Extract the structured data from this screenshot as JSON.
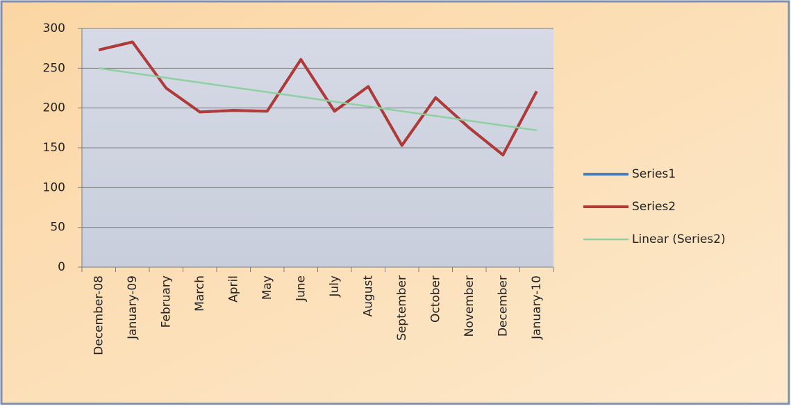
{
  "chart_data": {
    "type": "line",
    "categories": [
      "December-08",
      "January-09",
      "February",
      "March",
      "April",
      "May",
      "June",
      "July",
      "August",
      "September",
      "October",
      "November",
      "December",
      "January-10"
    ],
    "series": [
      {
        "name": "Series1",
        "color": "#4a7ebb",
        "values": [
          273,
          283,
          225,
          195,
          197,
          196,
          261,
          196,
          227,
          153,
          213,
          175,
          141,
          221
        ]
      },
      {
        "name": "Series2",
        "color": "#b23a36",
        "values": [
          273,
          283,
          225,
          195,
          197,
          196,
          261,
          196,
          227,
          153,
          213,
          175,
          141,
          221
        ]
      },
      {
        "name": "Linear (Series2)",
        "color": "#8fd0a0",
        "values": [
          250,
          244,
          238,
          232,
          226,
          220,
          214,
          208,
          202,
          196,
          190,
          184,
          178,
          172
        ]
      }
    ],
    "ylim": [
      0,
      300
    ],
    "yticks": [
      0,
      50,
      100,
      150,
      200,
      250,
      300
    ],
    "grid": true,
    "legend": "right"
  }
}
